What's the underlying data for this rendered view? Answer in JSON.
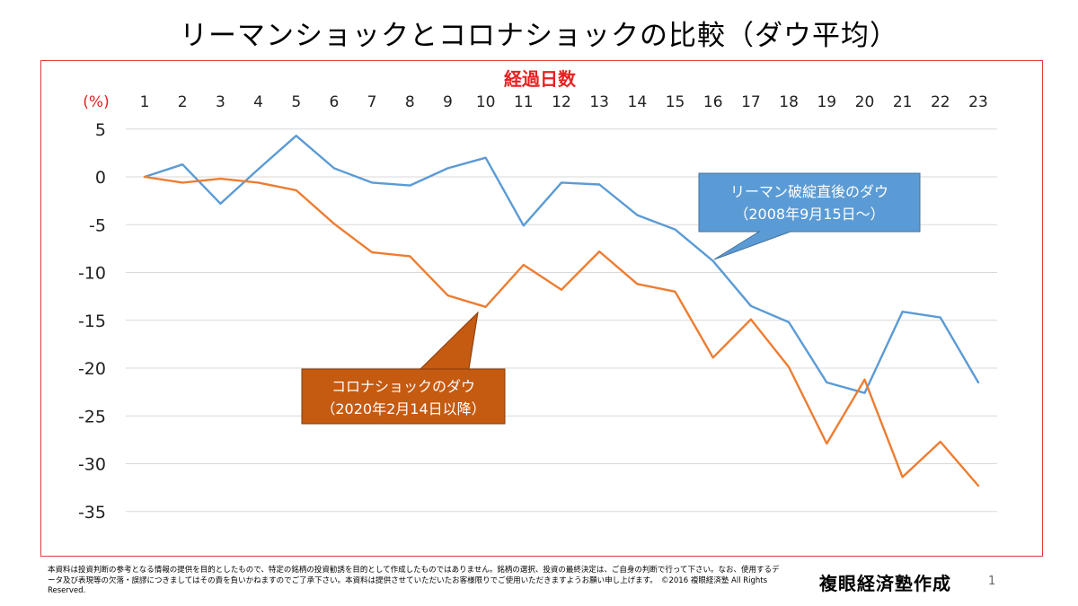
{
  "slide": {
    "title": "リーマンショックとコロナショックの比較（ダウ平均）",
    "disclaimer": "本資料は投資判断の参考となる情報の提供を目的としたもので、特定の銘柄の投資勧誘を目的として作成したものではありません。銘柄の選択、投資の最終決定は、ご自身の判断で行って下さい。なお、使用するデータ及び表現等の欠落・誤謬につきましてはその責を負いかねますのでご了承下さい。本資料は提供させていただいたお客様限りでご使用いただきますようお願い申し上げます。　©2016 複眼経済塾 All Rights Reserved.",
    "brand": "複眼経済塾作成",
    "page_number": "1"
  },
  "colors": {
    "frame": "#e03c3c",
    "axis_title": "#e82020",
    "lehman": "#5b9bd5",
    "corona": "#ed7d31",
    "callout_lehman_fill": "#5b9bd5",
    "callout_corona_fill": "#c55a11",
    "grid": "#d9d9d9"
  },
  "chart_data": {
    "type": "line",
    "title": "経過日数",
    "xlabel": "経過日数",
    "ylabel": "(%)",
    "x_axis_position": "top",
    "categories": [
      1,
      2,
      3,
      4,
      5,
      6,
      7,
      8,
      9,
      10,
      11,
      12,
      13,
      14,
      15,
      16,
      17,
      18,
      19,
      20,
      21,
      22,
      23
    ],
    "ylim": [
      -40,
      5
    ],
    "yticks": [
      5,
      0,
      -5,
      -10,
      -15,
      -20,
      -25,
      -30,
      -35
    ],
    "grid": true,
    "series": [
      {
        "name": "リーマン破綻直後のダウ",
        "values": [
          0,
          1.3,
          -2.8,
          0.8,
          4.3,
          0.9,
          -0.6,
          -0.9,
          0.9,
          2.0,
          -5.1,
          -0.6,
          -0.8,
          -4.0,
          -5.5,
          -8.8,
          -13.5,
          -15.2,
          -21.5,
          -22.6,
          -14.1,
          -14.7,
          -21.5
        ]
      },
      {
        "name": "コロナショックのダウ",
        "values": [
          0,
          -0.6,
          -0.2,
          -0.6,
          -1.4,
          -4.9,
          -7.9,
          -8.3,
          -12.4,
          -13.6,
          -9.2,
          -11.8,
          -7.8,
          -11.2,
          -12.0,
          -18.9,
          -14.9,
          -19.9,
          -27.9,
          -21.2,
          -31.4,
          -27.7,
          -32.3
        ]
      }
    ],
    "annotations": [
      {
        "series": "リーマン破綻直後のダウ",
        "line1": "リーマン破綻直後のダウ",
        "line2": "（2008年9月15日～）",
        "points_to_day": 16
      },
      {
        "series": "コロナショックのダウ",
        "line1": "コロナショックのダウ",
        "line2": "（2020年2月14日以降）",
        "points_to_day": 10
      }
    ]
  }
}
